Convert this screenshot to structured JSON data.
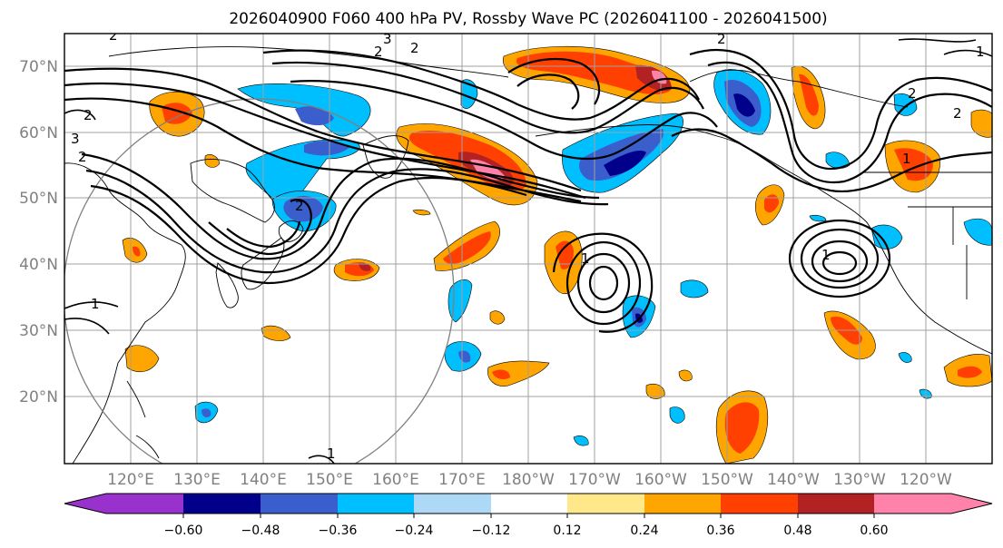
{
  "title": "2026040900 F060 400 hPa PV, Rossby Wave PC (2026041100 - 2026041500)",
  "lat_labels": [
    "70°N",
    "60°N",
    "50°N",
    "40°N",
    "30°N",
    "20°N"
  ],
  "lon_labels": [
    "120°E",
    "130°E",
    "140°E",
    "150°E",
    "160°E",
    "170°E",
    "180°W",
    "170°W",
    "160°W",
    "150°W",
    "140°W",
    "130°W",
    "120°W"
  ],
  "colorbar": {
    "colors": [
      "#9932cc",
      "#00008b",
      "#3a5fcd",
      "#00bfff",
      "#add8f6",
      "#ffffff",
      "#ffe88a",
      "#ffa500",
      "#ff4000",
      "#b22222",
      "#ff82ab"
    ],
    "tick_labels": [
      "−0.60",
      "−0.48",
      "−0.36",
      "−0.24",
      "−0.12",
      "0.12",
      "0.24",
      "0.36",
      "0.48",
      "0.60"
    ]
  },
  "contour_labels": [
    "2",
    "3",
    "2",
    "2",
    "3",
    "2",
    "2",
    "2",
    "1",
    "2",
    "1",
    "2",
    "2",
    "1",
    "1",
    "1",
    "1"
  ]
}
